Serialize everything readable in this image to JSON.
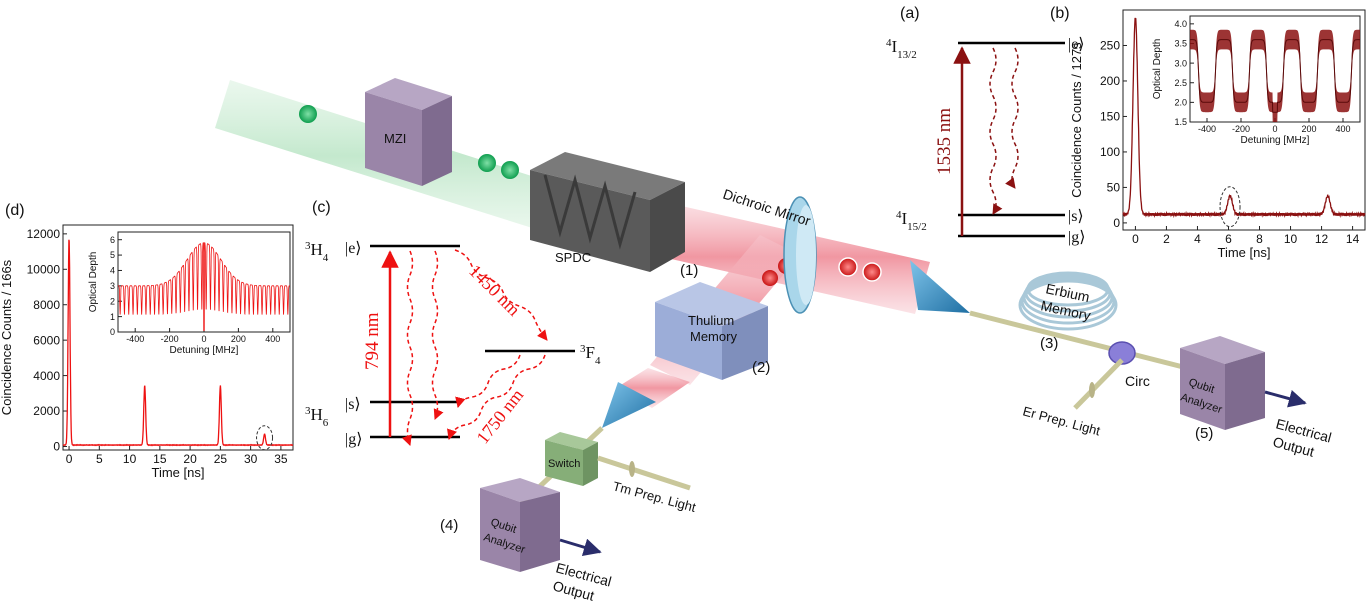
{
  "panel_labels": {
    "a": "(a)",
    "b": "(b)",
    "c": "(c)",
    "d": "(d)"
  },
  "setup": {
    "mzi": "MZI",
    "spdc": "SPDC",
    "dichroic": "Dichroic Mirror",
    "thulium_line1": "Thulium",
    "thulium_line2": "Memory",
    "erbium_line1": "Erbium",
    "erbium_line2": "Memory",
    "circ": "Circ",
    "switch": "Switch",
    "tm_prep": "Tm Prep. Light",
    "er_prep": "Er Prep. Light",
    "qubit_line1": "Qubit",
    "qubit_line2": "Analyzer",
    "electrical_line1": "Electrical",
    "electrical_line2": "Output",
    "n1": "(1)",
    "n2": "(2)",
    "n3": "(3)",
    "n4": "(4)",
    "n5": "(5)",
    "colors": {
      "green": "#1faa5a",
      "red": "#e03030",
      "box": "#9a85a8",
      "fiber": "#c9c79a"
    }
  },
  "level_a": {
    "upper_label": "4I13/2",
    "upper_main": "I",
    "upper_sup": "4",
    "upper_sub": "13/2",
    "lower_main": "I",
    "lower_sup": "4",
    "lower_sub": "15/2",
    "ket_e": "|e⟩",
    "ket_s": "|s⟩",
    "ket_g": "|g⟩",
    "wavelength": "1535 nm",
    "color": "#8b1111"
  },
  "level_c": {
    "h4_sup": "3",
    "h4_main": "H",
    "h4_sub": "4",
    "f4_sup": "3",
    "f4_main": "F",
    "f4_sub": "4",
    "h6_sup": "3",
    "h6_main": "H",
    "h6_sub": "6",
    "ket_e": "|e⟩",
    "ket_s": "|s⟩",
    "ket_g": "|g⟩",
    "w794": "794 nm",
    "w1450": "1450 nm",
    "w1750": "1750 nm",
    "color": "#ee1111"
  },
  "chart_data": [
    {
      "id": "b",
      "type": "line",
      "xlabel": "Time [ns]",
      "ylabel": "Coincidence Counts / 127s",
      "xlim": [
        -0.8,
        14.8
      ],
      "ylim": [
        -10,
        300
      ],
      "xticks": [
        0,
        2,
        4,
        6,
        8,
        10,
        12,
        14
      ],
      "yticks": [
        0,
        50,
        100,
        150,
        200,
        250
      ],
      "color": "#8b1111",
      "peaks": [
        {
          "x": 0.0,
          "y": 290
        },
        {
          "x": 6.1,
          "y": 38
        },
        {
          "x": 12.4,
          "y": 38
        }
      ],
      "baseline": 12,
      "inset": {
        "type": "line",
        "xlabel": "Detuning [MHz]",
        "ylabel": "Optical Depth",
        "xlim": [
          -500,
          500
        ],
        "ylim": [
          1.5,
          4.2
        ],
        "xticks": [
          -400,
          -200,
          0,
          200,
          400
        ],
        "yticks": [
          1.5,
          2.0,
          2.5,
          3.0,
          3.5,
          4.0
        ],
        "high": 3.6,
        "low": 2.0,
        "period": 200,
        "dip_center": 0,
        "dip_value": 1.75
      }
    },
    {
      "id": "d",
      "type": "line",
      "xlabel": "Time [ns]",
      "ylabel": "Coincidence Counts / 166s",
      "xlim": [
        -1,
        37
      ],
      "ylim": [
        -200,
        12500
      ],
      "xticks": [
        0,
        5,
        10,
        15,
        20,
        25,
        30,
        35
      ],
      "yticks": [
        0,
        2000,
        4000,
        6000,
        8000,
        10000,
        12000
      ],
      "color": "#ee1111",
      "peaks": [
        {
          "x": 0.0,
          "y": 11800
        },
        {
          "x": 12.5,
          "y": 3450
        },
        {
          "x": 25.0,
          "y": 3450
        },
        {
          "x": 32.3,
          "y": 700
        }
      ],
      "baseline": 80,
      "inset": {
        "type": "line",
        "xlabel": "Detuning [MHz]",
        "ylabel": "Optical Depth",
        "xlim": [
          -500,
          500
        ],
        "ylim": [
          0,
          6.5
        ],
        "xticks": [
          -400,
          -200,
          0,
          200,
          400
        ],
        "yticks": [
          0,
          1,
          2,
          3,
          4,
          5,
          6
        ],
        "comb_spacing": 25,
        "envelope_center": 0,
        "envelope_peak": 5.8,
        "envelope_base": 3.0
      }
    }
  ]
}
